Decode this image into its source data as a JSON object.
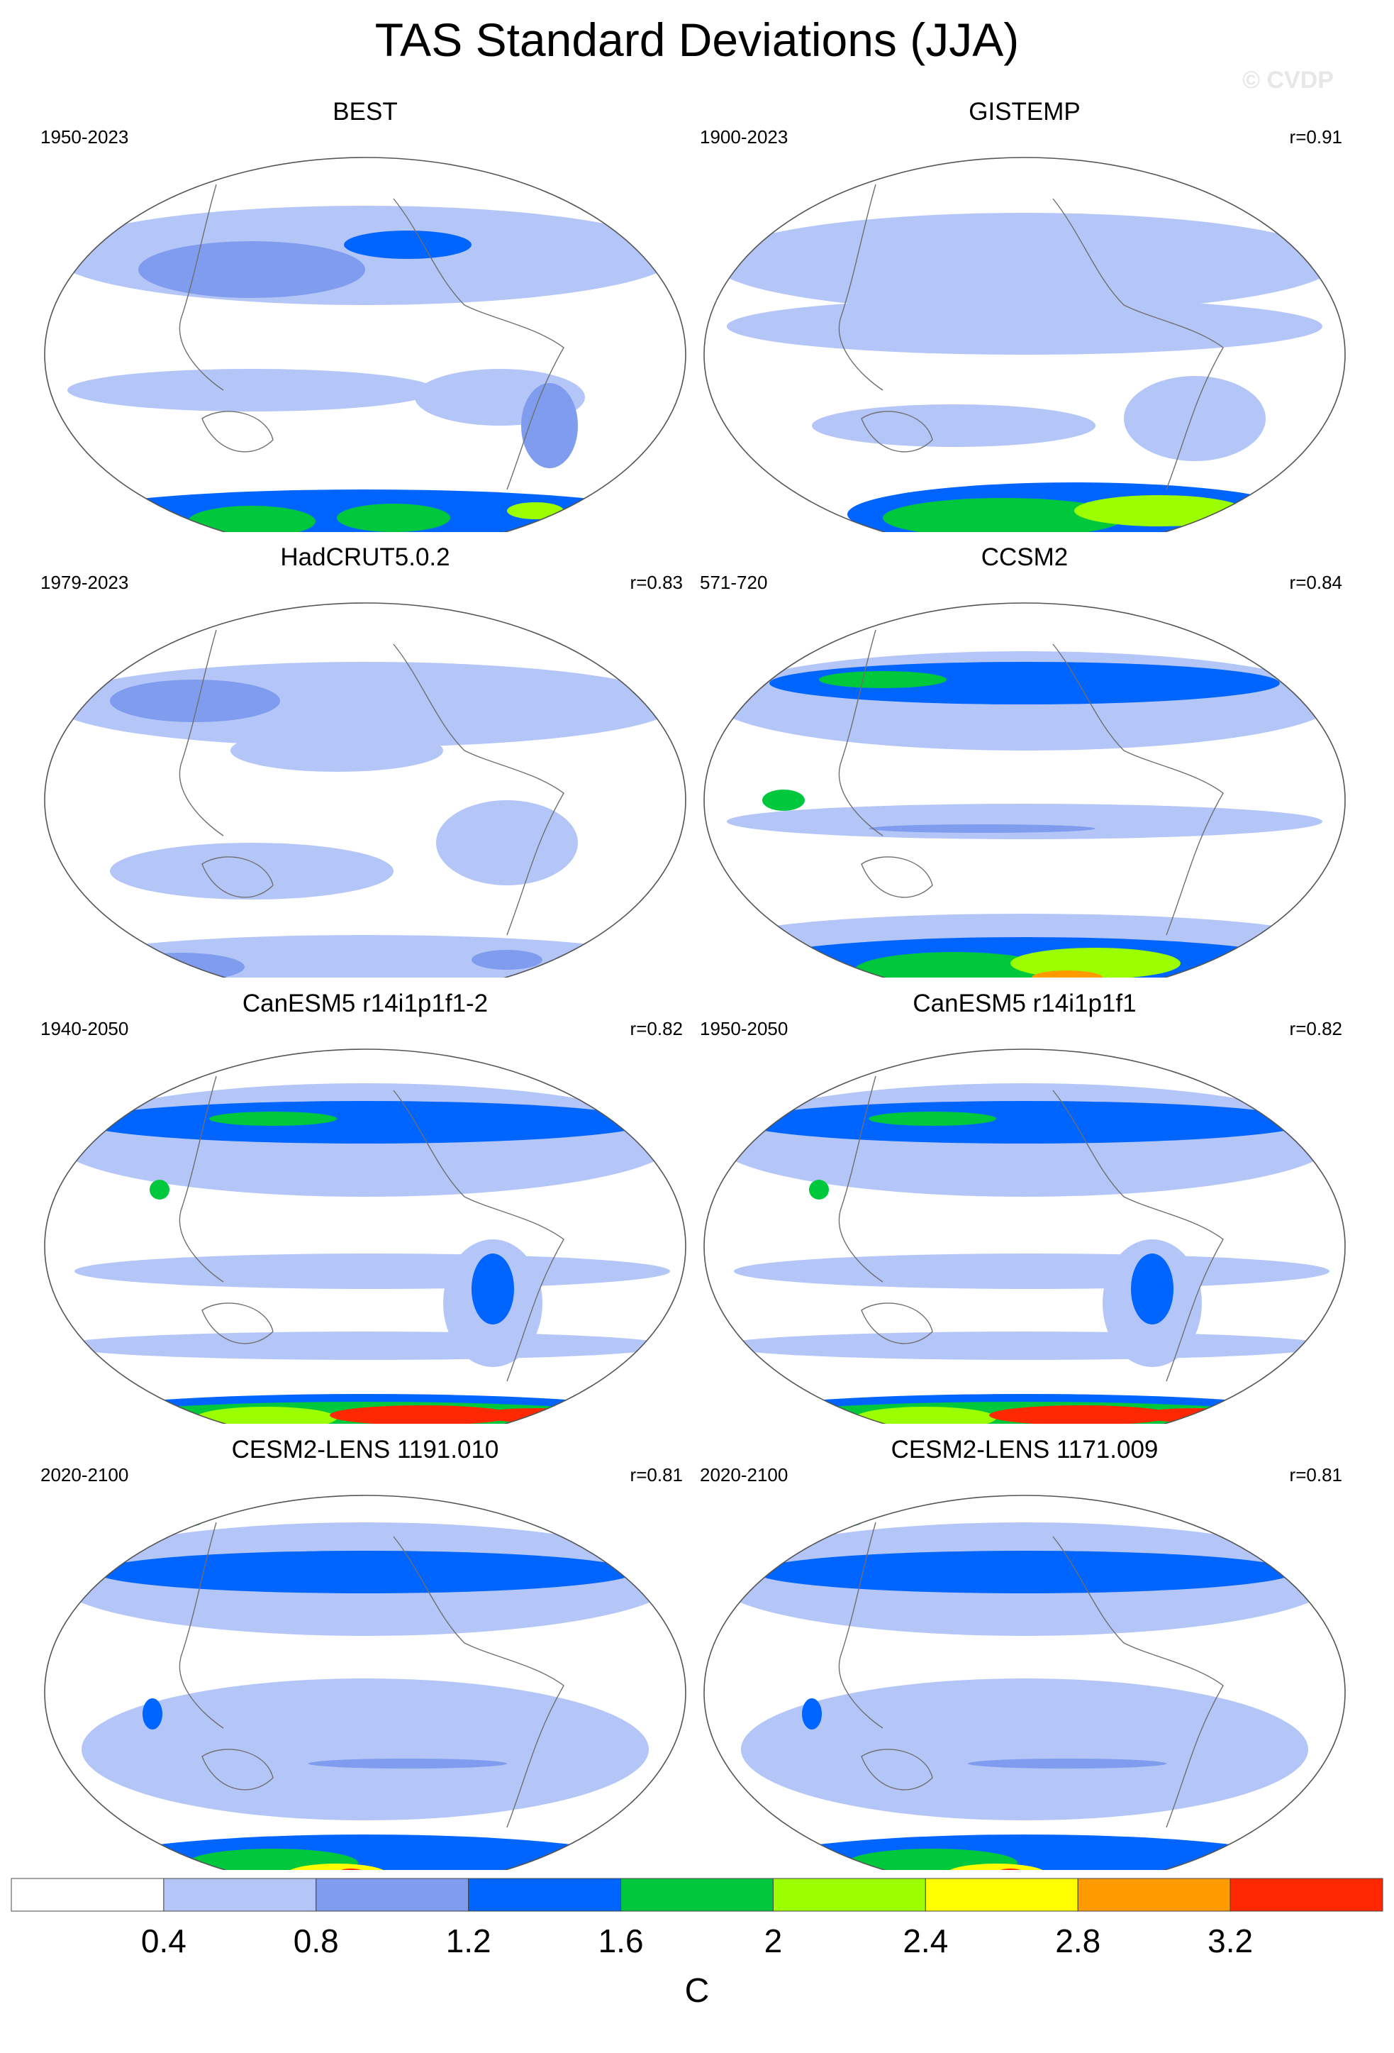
{
  "title": "TAS Standard Deviations (JJA)",
  "watermark": "© CVDP",
  "panels": [
    {
      "name": "BEST",
      "period": "1950-2023",
      "r": "",
      "style": "obs_best"
    },
    {
      "name": "GISTEMP",
      "period": "1900-2023",
      "r": "r=0.91",
      "style": "obs_gis"
    },
    {
      "name": "HadCRUT5.0.2",
      "period": "1979-2023",
      "r": "r=0.83",
      "style": "obs_had"
    },
    {
      "name": "CCSM2",
      "period": "571-720",
      "r": "r=0.84",
      "style": "model_ccsm"
    },
    {
      "name": "CanESM5 r14i1p1f1-2",
      "period": "1940-2050",
      "r": "r=0.82",
      "style": "model_can"
    },
    {
      "name": "CanESM5 r14i1p1f1",
      "period": "1950-2050",
      "r": "r=0.82",
      "style": "model_can"
    },
    {
      "name": "CESM2-LENS 1191.010",
      "period": "2020-2100",
      "r": "r=0.81",
      "style": "model_cesm"
    },
    {
      "name": "CESM2-LENS 1171.009",
      "period": "2020-2100",
      "r": "r=0.81",
      "style": "model_cesm"
    }
  ],
  "colorbar": {
    "unit": "C",
    "labels": [
      "0.4",
      "0.8",
      "1.2",
      "1.6",
      "2",
      "2.4",
      "2.8",
      "3.2"
    ],
    "colors": [
      "#ffffff",
      "#b3c6f7",
      "#7f9cee",
      "#0064ff",
      "#00c83c",
      "#9cff00",
      "#ffff00",
      "#ff9a00",
      "#ff2800"
    ]
  }
}
